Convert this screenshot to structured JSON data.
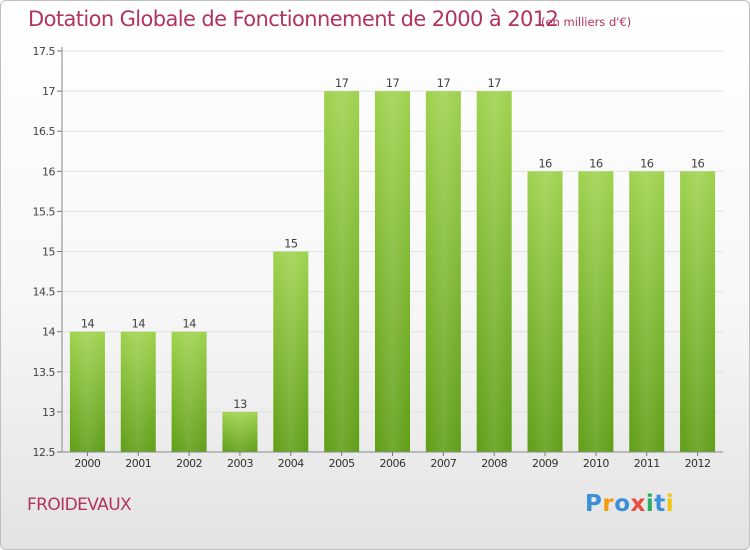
{
  "chart_data": {
    "type": "bar",
    "title": "Dotation Globale de Fonctionnement de 2000 à 2012",
    "subtitle": "(en milliers d'€)",
    "categories": [
      "2000",
      "2001",
      "2002",
      "2003",
      "2004",
      "2005",
      "2006",
      "2007",
      "2008",
      "2009",
      "2010",
      "2011",
      "2012"
    ],
    "values": [
      14,
      14,
      14,
      13,
      15,
      17,
      17,
      17,
      17,
      16,
      16,
      16,
      16
    ],
    "xlabel": "",
    "ylabel": "",
    "ylim": [
      12.5,
      17.5
    ],
    "yticks": [
      12.5,
      13,
      13.5,
      14,
      14.5,
      15,
      15.5,
      16,
      16.5,
      17,
      17.5
    ],
    "ytick_labels": [
      "12.5",
      "13",
      "13.5",
      "14",
      "14.5",
      "15",
      "15.5",
      "16",
      "16.5",
      "17",
      "17.5"
    ],
    "grid": "horizontal",
    "bar_color": "#8cc63f"
  },
  "footer": {
    "commune": "FROIDEVAUX",
    "logo": "Proxiti",
    "logo_colors": [
      "#3a8fd6",
      "#f39c12",
      "#3a8fd6",
      "#e74c3c",
      "#27ae60",
      "#3a8fd6",
      "#f1c40f"
    ]
  }
}
